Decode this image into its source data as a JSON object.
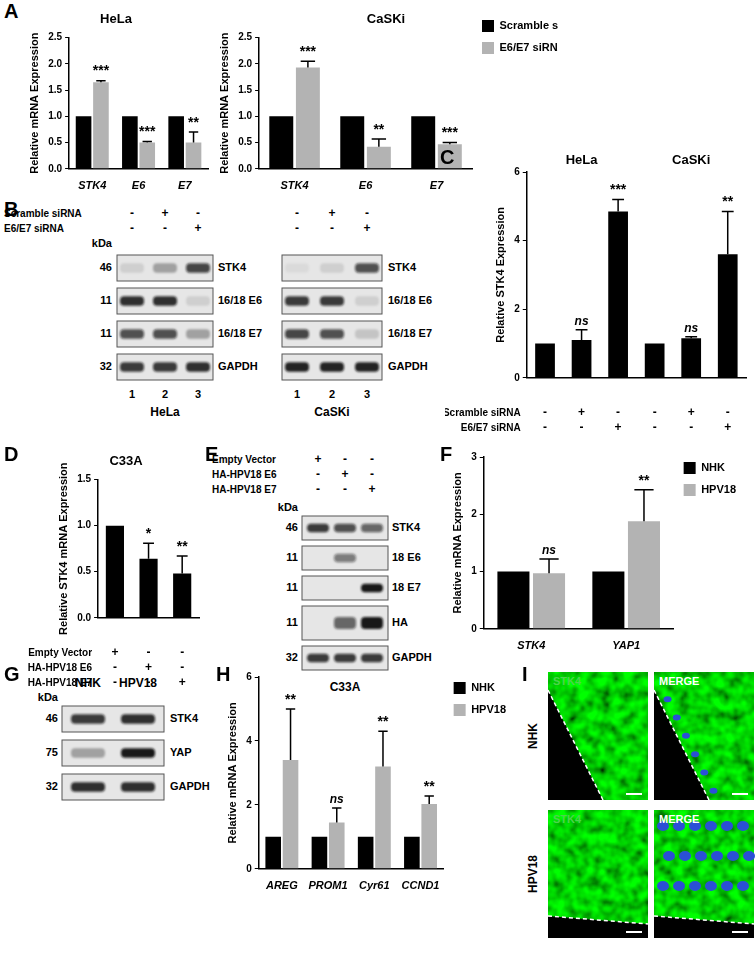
{
  "panel_letters": [
    "A",
    "B",
    "C",
    "D",
    "E",
    "F",
    "G",
    "H",
    "I"
  ],
  "chart_data": [
    {
      "type": "bar",
      "title": "HeLa",
      "y_label": "Relative mRNA Expression",
      "categories": [
        "STK4",
        "E6",
        "E7"
      ],
      "series": [
        {
          "name": "Scramble siRNA",
          "color": "#000000",
          "values": [
            1,
            1,
            1
          ]
        },
        {
          "name": "E6/E7 siRNA",
          "color": "#b3b3b3",
          "values": [
            1.65,
            0.5,
            0.5
          ],
          "errors": [
            0.03,
            0.02,
            0.2
          ],
          "annotations": [
            "***",
            "***",
            "**"
          ]
        }
      ],
      "ylim": [
        0,
        2.5
      ],
      "yticks": [
        {
          "value": 0,
          "label": "0.0"
        },
        0.5,
        {
          "value": 1,
          "label": "1.0"
        },
        1.5,
        {
          "value": 2,
          "label": "2.0"
        },
        2.5
      ],
      "grid": false
    },
    {
      "type": "bar",
      "title": "CaSKi",
      "y_label": "Relative mRNA Expression",
      "categories": [
        "STK4",
        "E6",
        "E7"
      ],
      "series": [
        {
          "name": "Scramble siRNA",
          "color": "#000000",
          "values": [
            1,
            1,
            1
          ]
        },
        {
          "name": "E6/E7 siRNA",
          "color": "#b3b3b3",
          "values": [
            1.93,
            0.42,
            0.47
          ],
          "errors": [
            0.12,
            0.15,
            0.03
          ],
          "annotations": [
            "***",
            "**",
            "***"
          ]
        }
      ],
      "ylim": [
        0,
        2.5
      ],
      "yticks": [
        {
          "value": 0,
          "label": "0.0"
        },
        0.5,
        {
          "value": 1,
          "label": "1.0"
        },
        1.5,
        {
          "value": 2,
          "label": "2.0"
        },
        2.5
      ],
      "grid": false,
      "legend": "right"
    },
    {
      "type": "bar",
      "y_label": "Relative STK4 Expression",
      "categories": [
        null,
        null,
        null,
        null,
        null,
        null
      ],
      "groups": [
        "HeLa",
        "CaSKi"
      ],
      "color": "#000000",
      "values": [
        1,
        1.1,
        4.85,
        1,
        1.15,
        3.6
      ],
      "errors": [
        0,
        0.3,
        0.35,
        0,
        0.05,
        1.25
      ],
      "annotations": [
        null,
        "ns",
        "***",
        null,
        "ns",
        "**"
      ],
      "conditions": [
        {
          "label": "Scramble siRNA",
          "marks": [
            "-",
            "+",
            "-",
            "-",
            "+",
            "-"
          ]
        },
        {
          "label": "E6/E7 siRNA",
          "marks": [
            "-",
            "-",
            "+",
            "-",
            "-",
            "+"
          ]
        }
      ],
      "ylim": [
        0,
        6
      ],
      "yticks": [
        0,
        2,
        4,
        6
      ],
      "grid": false
    },
    {
      "type": "bar",
      "title": "C33A",
      "y_label": "Relative STK4 mRNA Expression",
      "categories": [
        null,
        null,
        null
      ],
      "color": "#000000",
      "values": [
        1,
        0.64,
        0.48
      ],
      "errors": [
        0,
        0.17,
        0.19
      ],
      "annotations": [
        null,
        "*",
        "**"
      ],
      "conditions": [
        {
          "label": "Empty Vector",
          "marks": [
            "+",
            "-",
            "-"
          ]
        },
        {
          "label": "HA-HPV18 E6",
          "marks": [
            "-",
            "+",
            "-"
          ]
        },
        {
          "label": "HA-HPV18 E7",
          "marks": [
            "-",
            "-",
            "+"
          ]
        }
      ],
      "ylim": [
        0,
        1.5
      ],
      "yticks": [
        {
          "value": 0,
          "label": "0.0"
        },
        0.5,
        {
          "value": 1,
          "label": "1.0"
        },
        1.5
      ],
      "grid": false
    },
    {
      "type": "bar",
      "y_label": "Relative mRNA Expression",
      "categories": [
        "STK4",
        "YAP1"
      ],
      "series": [
        {
          "name": "NHK",
          "color": "#000000",
          "values": [
            1,
            1
          ]
        },
        {
          "name": "HPV18",
          "color": "#b3b3b3",
          "values": [
            0.97,
            1.88
          ],
          "errors": [
            0.25,
            0.55
          ],
          "annotations": [
            "ns",
            "**"
          ]
        }
      ],
      "ylim": [
        0,
        3
      ],
      "yticks": [
        0,
        1,
        2,
        3
      ],
      "grid": false,
      "legend": "right"
    },
    {
      "type": "bar",
      "y_label": "Relative mRNA Expression",
      "categories": [
        "AREG",
        "PROM1",
        "Cyr61",
        "CCND1"
      ],
      "series": [
        {
          "name": "NHK",
          "color": "#000000",
          "values": [
            1,
            1,
            1,
            1
          ]
        },
        {
          "name": "HPV18",
          "color": "#b3b3b3",
          "values": [
            3.4,
            1.45,
            3.2,
            2.03
          ],
          "errors": [
            1.6,
            0.45,
            1.1,
            0.25
          ],
          "annotations": [
            "**",
            "ns",
            "**",
            "**"
          ]
        }
      ],
      "ylim": [
        0,
        6
      ],
      "yticks": [
        0,
        2,
        4,
        6
      ],
      "grid": false,
      "legend": "right"
    }
  ],
  "blots": [
    {
      "unit": "kDa",
      "conditions": [
        {
          "label": "Scramble siRNA",
          "marks": [
            "-",
            "+",
            "-"
          ]
        },
        {
          "label": "E6/E7 siRNA",
          "marks": [
            "-",
            "-",
            "+"
          ]
        }
      ],
      "cell_lines": [
        "HeLa",
        "CaSKi"
      ],
      "lane_numbers": [
        1,
        2,
        3
      ],
      "rows": [
        {
          "label": "STK4",
          "marker": 46,
          "band_intensity": [
            [
              0.1,
              0.3,
              0.75
            ],
            [
              0.05,
              0.1,
              0.7
            ]
          ]
        },
        {
          "label": "16/18 E6",
          "marker": 11,
          "band_intensity": [
            [
              0.85,
              0.85,
              0.1
            ],
            [
              0.8,
              0.8,
              0.1
            ]
          ]
        },
        {
          "label": "16/18 E7",
          "marker": 11,
          "band_intensity": [
            [
              0.7,
              0.7,
              0.3
            ],
            [
              0.75,
              0.7,
              0.15
            ]
          ]
        },
        {
          "label": "GAPDH",
          "marker": 32,
          "band_intensity": [
            [
              0.8,
              0.8,
              0.85
            ],
            [
              0.9,
              0.9,
              0.9
            ]
          ]
        }
      ]
    },
    {
      "unit": "kDa",
      "conditions": [
        {
          "label": "Empty Vector",
          "marks": [
            "+",
            "-",
            "-"
          ]
        },
        {
          "label": "HA-HPV18 E6",
          "marks": [
            "-",
            "+",
            "-"
          ]
        },
        {
          "label": "HA-HPV18 E7",
          "marks": [
            "-",
            "-",
            "+"
          ]
        }
      ],
      "cell_lines": [
        "C33A"
      ],
      "rows": [
        {
          "label": "STK4",
          "marker": 46,
          "band_intensity": [
            [
              0.8,
              0.7,
              0.6
            ]
          ]
        },
        {
          "label": "18 E6",
          "marker": 11,
          "band_intensity": [
            [
              0,
              0.5,
              0
            ]
          ]
        },
        {
          "label": "18 E7",
          "marker": 11,
          "band_intensity": [
            [
              0,
              0,
              0.95
            ]
          ]
        },
        {
          "label": "HA",
          "marker": 11,
          "band_intensity": [
            [
              0,
              0.6,
              0.95
            ]
          ]
        },
        {
          "label": "GAPDH",
          "marker": 32,
          "band_intensity": [
            [
              0.8,
              0.8,
              0.8
            ]
          ]
        }
      ]
    },
    {
      "unit": "kDa",
      "lanes": [
        "NHK",
        "HPV18"
      ],
      "rows": [
        {
          "label": "STK4",
          "marker": 46,
          "band_intensity": [
            [
              0.8,
              0.85
            ]
          ]
        },
        {
          "label": "YAP",
          "marker": 75,
          "band_intensity": [
            [
              0.3,
              0.95
            ]
          ]
        },
        {
          "label": "GAPDH",
          "marker": 32,
          "band_intensity": [
            [
              0.85,
              0.85
            ]
          ]
        }
      ]
    }
  ],
  "micrographs": {
    "rows": [
      "NHK",
      "HPV18"
    ],
    "columns": [
      "STK4",
      "MERGE"
    ]
  }
}
